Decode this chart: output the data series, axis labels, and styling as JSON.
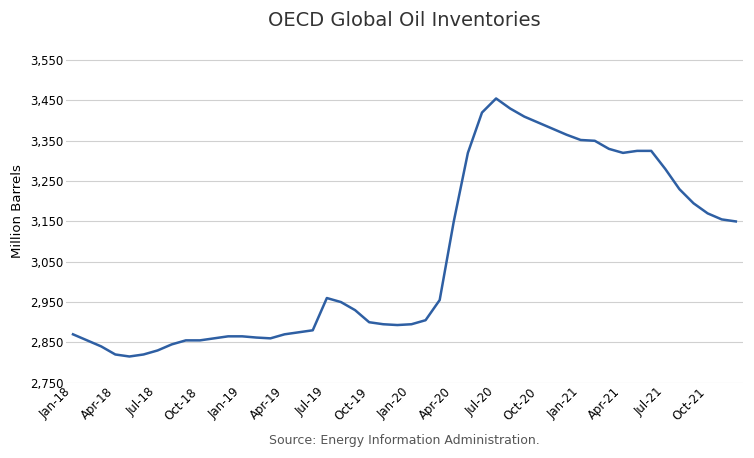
{
  "title": "OECD Global Oil Inventories",
  "ylabel": "Million Barrels",
  "source": "Source: Energy Information Administration.",
  "line_color": "#2E5FA3",
  "line_width": 1.8,
  "background_color": "#FFFFFF",
  "ylim": [
    2750,
    3600
  ],
  "yticks": [
    2750,
    2850,
    2950,
    3050,
    3150,
    3250,
    3350,
    3450,
    3550
  ],
  "x_labels": [
    "Jan-18",
    "Apr-18",
    "Jul-18",
    "Oct-18",
    "Jan-19",
    "Apr-19",
    "Jul-19",
    "Oct-19",
    "Jan-20",
    "Apr-20",
    "Jul-20",
    "Oct-20",
    "Jan-21",
    "Apr-21",
    "Jul-21",
    "Oct-21"
  ],
  "data": {
    "Jan-18": 2870,
    "Feb-18": 2855,
    "Mar-18": 2840,
    "Apr-18": 2820,
    "May-18": 2815,
    "Jun-18": 2820,
    "Jul-18": 2830,
    "Aug-18": 2845,
    "Sep-18": 2855,
    "Oct-18": 2855,
    "Nov-18": 2860,
    "Dec-18": 2865,
    "Jan-19": 2865,
    "Feb-19": 2862,
    "Mar-19": 2860,
    "Apr-19": 2870,
    "May-19": 2875,
    "Jun-19": 2880,
    "Jul-19": 2960,
    "Aug-19": 2950,
    "Sep-19": 2930,
    "Oct-19": 2900,
    "Nov-19": 2895,
    "Dec-19": 2893,
    "Jan-20": 2895,
    "Feb-20": 2905,
    "Mar-20": 2955,
    "Apr-20": 3150,
    "May-20": 3320,
    "Jun-20": 3420,
    "Jul-20": 3455,
    "Aug-20": 3430,
    "Sep-20": 3410,
    "Oct-20": 3395,
    "Nov-20": 3380,
    "Dec-20": 3365,
    "Jan-21": 3352,
    "Feb-21": 3350,
    "Mar-21": 3330,
    "Apr-21": 3320,
    "May-21": 3325,
    "Jun-21": 3325,
    "Jul-21": 3280,
    "Aug-21": 3230,
    "Sep-21": 3195,
    "Oct-21": 3170,
    "Nov-21": 3155,
    "Dec-21": 3150
  }
}
